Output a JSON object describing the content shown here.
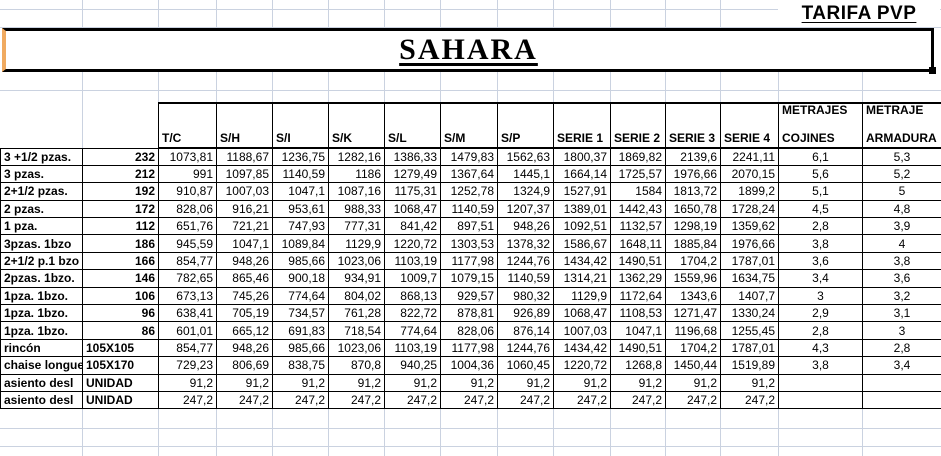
{
  "sheet": {
    "tarifa_label": "TARIFA PVP",
    "title": "SAHARA"
  },
  "table": {
    "price_columns": [
      "T/C",
      "S/H",
      "S/I",
      "S/K",
      "S/L",
      "S/M",
      "S/P",
      "SERIE 1",
      "SERIE 2",
      "SERIE 3",
      "SERIE 4"
    ],
    "metraje_headers": [
      {
        "line1": "METRAJES",
        "line2": "COJINES"
      },
      {
        "line1": "METRAJE",
        "line2": "ARMADURA"
      }
    ],
    "rows": [
      {
        "label": "3 +1/2 pzas.",
        "size": "232",
        "prices": [
          "1073,81",
          "1188,67",
          "1236,75",
          "1282,16",
          "1386,33",
          "1479,83",
          "1562,63",
          "1800,37",
          "1869,82",
          "2139,6",
          "2241,11"
        ],
        "cojines": "6,1",
        "armadura": "5,3"
      },
      {
        "label": "3 pzas.",
        "size": "212",
        "prices": [
          "991",
          "1097,85",
          "1140,59",
          "1186",
          "1279,49",
          "1367,64",
          "1445,1",
          "1664,14",
          "1725,57",
          "1976,66",
          "2070,15"
        ],
        "cojines": "5,6",
        "armadura": "5,2"
      },
      {
        "label": "2+1/2 pzas.",
        "size": "192",
        "prices": [
          "910,87",
          "1007,03",
          "1047,1",
          "1087,16",
          "1175,31",
          "1252,78",
          "1324,9",
          "1527,91",
          "1584",
          "1813,72",
          "1899,2"
        ],
        "cojines": "5,1",
        "armadura": "5"
      },
      {
        "label": "2 pzas.",
        "size": "172",
        "prices": [
          "828,06",
          "916,21",
          "953,61",
          "988,33",
          "1068,47",
          "1140,59",
          "1207,37",
          "1389,01",
          "1442,43",
          "1650,78",
          "1728,24"
        ],
        "cojines": "4,5",
        "armadura": "4,8"
      },
      {
        "label": "1 pza.",
        "size": "112",
        "prices": [
          "651,76",
          "721,21",
          "747,93",
          "777,31",
          "841,42",
          "897,51",
          "948,26",
          "1092,51",
          "1132,57",
          "1298,19",
          "1359,62"
        ],
        "cojines": "2,8",
        "armadura": "3,9"
      },
      {
        "label": "3pzas. 1bzo",
        "size": "186",
        "prices": [
          "945,59",
          "1047,1",
          "1089,84",
          "1129,9",
          "1220,72",
          "1303,53",
          "1378,32",
          "1586,67",
          "1648,11",
          "1885,84",
          "1976,66"
        ],
        "cojines": "3,8",
        "armadura": "4"
      },
      {
        "label": "2+1/2 p.1 bzo",
        "size": "166",
        "prices": [
          "854,77",
          "948,26",
          "985,66",
          "1023,06",
          "1103,19",
          "1177,98",
          "1244,76",
          "1434,42",
          "1490,51",
          "1704,2",
          "1787,01"
        ],
        "cojines": "3,6",
        "armadura": "3,8"
      },
      {
        "label": "2pzas. 1bzo.",
        "size": "146",
        "prices": [
          "782,65",
          "865,46",
          "900,18",
          "934,91",
          "1009,7",
          "1079,15",
          "1140,59",
          "1314,21",
          "1362,29",
          "1559,96",
          "1634,75"
        ],
        "cojines": "3,4",
        "armadura": "3,6"
      },
      {
        "label": "1pza. 1bzo.",
        "size": "106",
        "prices": [
          "673,13",
          "745,26",
          "774,64",
          "804,02",
          "868,13",
          "929,57",
          "980,32",
          "1129,9",
          "1172,64",
          "1343,6",
          "1407,7"
        ],
        "cojines": "3",
        "armadura": "3,2"
      },
      {
        "label": "1pza. 1bzo.",
        "size": "96",
        "prices": [
          "638,41",
          "705,19",
          "734,57",
          "761,28",
          "822,72",
          "878,81",
          "926,89",
          "1068,47",
          "1108,53",
          "1271,47",
          "1330,24"
        ],
        "cojines": "2,9",
        "armadura": "3,1"
      },
      {
        "label": "1pza. 1bzo.",
        "size": "86",
        "prices": [
          "601,01",
          "665,12",
          "691,83",
          "718,54",
          "774,64",
          "828,06",
          "876,14",
          "1007,03",
          "1047,1",
          "1196,68",
          "1255,45"
        ],
        "cojines": "2,8",
        "armadura": "3"
      },
      {
        "label": "rincón",
        "size": "105X105",
        "prices": [
          "854,77",
          "948,26",
          "985,66",
          "1023,06",
          "1103,19",
          "1177,98",
          "1244,76",
          "1434,42",
          "1490,51",
          "1704,2",
          "1787,01"
        ],
        "cojines": "4,3",
        "armadura": "2,8"
      },
      {
        "label": "chaise longue",
        "size": "105X170",
        "prices": [
          "729,23",
          "806,69",
          "838,75",
          "870,8",
          "940,25",
          "1004,36",
          "1060,45",
          "1220,72",
          "1268,8",
          "1450,44",
          "1519,89"
        ],
        "cojines": "3,8",
        "armadura": "3,4"
      },
      {
        "label": "asiento desl",
        "size": "UNIDAD",
        "prices": [
          "91,2",
          "91,2",
          "91,2",
          "91,2",
          "91,2",
          "91,2",
          "91,2",
          "91,2",
          "91,2",
          "91,2",
          "91,2"
        ],
        "cojines": "",
        "armadura": ""
      },
      {
        "label": "asiento desl",
        "size": "UNIDAD",
        "prices": [
          "247,2",
          "247,2",
          "247,2",
          "247,2",
          "247,2",
          "247,2",
          "247,2",
          "247,2",
          "247,2",
          "247,2",
          "247,2"
        ],
        "cojines": "",
        "armadura": ""
      }
    ]
  },
  "colors": {
    "gridline": "#cad2e0",
    "title_box_left_edge": "#f0aa60",
    "border": "#000000"
  }
}
